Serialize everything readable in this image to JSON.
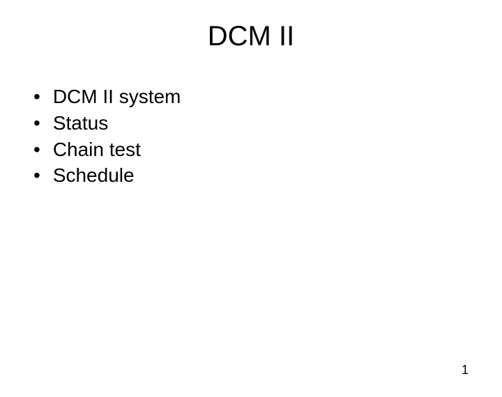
{
  "slide": {
    "title": "DCM II",
    "title_fontsize": 40,
    "title_color": "#000000",
    "bullets": [
      "DCM II system",
      "Status",
      "Chain test",
      "Schedule"
    ],
    "bullet_fontsize": 28,
    "bullet_color": "#000000",
    "bullet_marker": "•",
    "page_number": "1",
    "page_number_fontsize": 18,
    "background_color": "#ffffff"
  }
}
